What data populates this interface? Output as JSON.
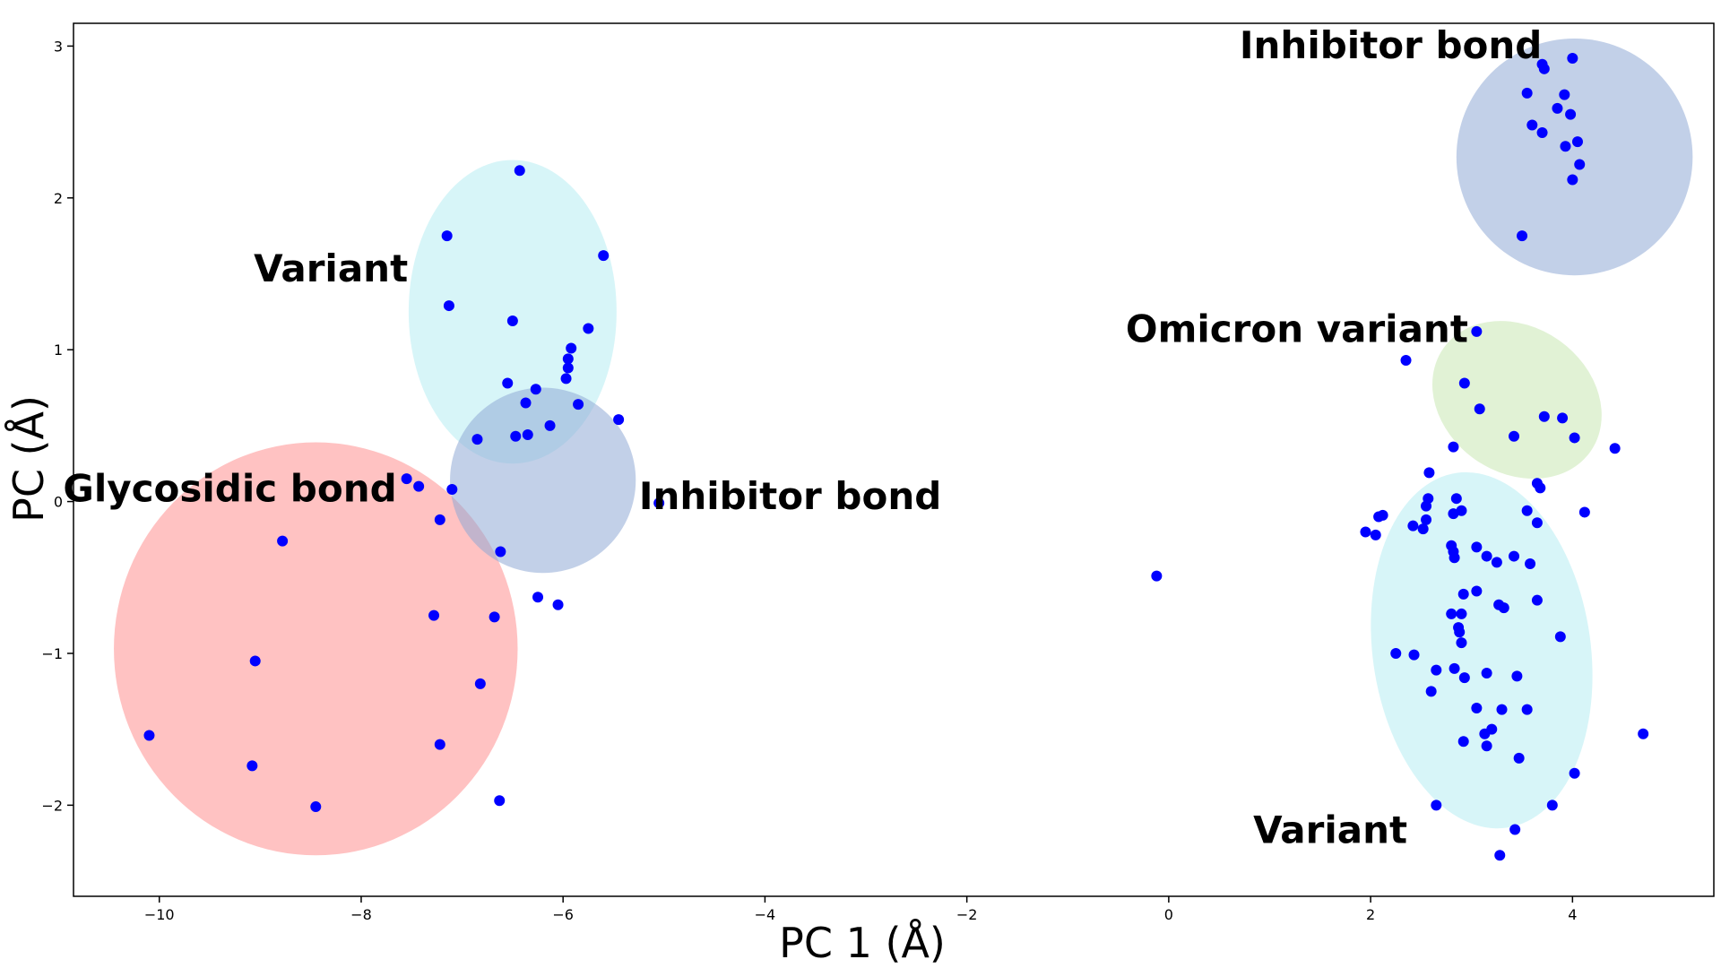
{
  "chart_data": {
    "type": "scatter",
    "title": "",
    "xlabel": "PC 1 (Å)",
    "ylabel": "PC (Å)",
    "xlim": [
      -10.85,
      5.4
    ],
    "ylim": [
      -2.6,
      3.15
    ],
    "xticks": [
      -10,
      -8,
      -6,
      -4,
      -2,
      0,
      2,
      4
    ],
    "yticks": [
      -2,
      -1,
      0,
      1,
      2,
      3
    ],
    "xtick_labels": [
      "−10",
      "−8",
      "−6",
      "−4",
      "−2",
      "0",
      "2",
      "4"
    ],
    "ytick_labels": [
      "−2",
      "−1",
      "0",
      "1",
      "2",
      "3"
    ],
    "grid": false,
    "marker_color": "#0000ff",
    "points": [
      [
        -10.1,
        -1.54
      ],
      [
        -9.05,
        -1.05
      ],
      [
        -9.08,
        -1.74
      ],
      [
        -8.78,
        -0.26
      ],
      [
        -8.45,
        -2.01
      ],
      [
        -7.55,
        0.15
      ],
      [
        -7.43,
        0.1
      ],
      [
        -7.22,
        -0.12
      ],
      [
        -7.28,
        -0.75
      ],
      [
        -6.82,
        -1.2
      ],
      [
        -7.22,
        -1.6
      ],
      [
        -6.68,
        -0.76
      ],
      [
        -7.1,
        0.08
      ],
      [
        -6.62,
        -0.33
      ],
      [
        -6.63,
        -1.97
      ],
      [
        -7.15,
        1.75
      ],
      [
        -7.13,
        1.29
      ],
      [
        -6.43,
        2.18
      ],
      [
        -5.6,
        1.62
      ],
      [
        -6.5,
        1.19
      ],
      [
        -5.75,
        1.14
      ],
      [
        -5.92,
        1.01
      ],
      [
        -5.95,
        0.94
      ],
      [
        -5.95,
        0.88
      ],
      [
        -5.97,
        0.81
      ],
      [
        -6.55,
        0.78
      ],
      [
        -6.27,
        0.74
      ],
      [
        -6.37,
        0.65
      ],
      [
        -5.85,
        0.64
      ],
      [
        -5.45,
        0.54
      ],
      [
        -6.13,
        0.5
      ],
      [
        -6.85,
        0.41
      ],
      [
        -6.47,
        0.43
      ],
      [
        -6.35,
        0.44
      ],
      [
        -6.25,
        -0.63
      ],
      [
        -6.05,
        -0.68
      ],
      [
        -5.05,
        -0.01
      ],
      [
        -0.12,
        -0.49
      ],
      [
        3.7,
        2.88
      ],
      [
        3.72,
        2.85
      ],
      [
        4.0,
        2.92
      ],
      [
        3.55,
        2.69
      ],
      [
        3.92,
        2.68
      ],
      [
        3.85,
        2.59
      ],
      [
        3.98,
        2.55
      ],
      [
        3.6,
        2.48
      ],
      [
        3.7,
        2.43
      ],
      [
        4.05,
        2.37
      ],
      [
        3.93,
        2.34
      ],
      [
        4.07,
        2.22
      ],
      [
        4.0,
        2.12
      ],
      [
        3.5,
        1.75
      ],
      [
        3.05,
        1.12
      ],
      [
        2.35,
        0.93
      ],
      [
        2.93,
        0.78
      ],
      [
        3.08,
        0.61
      ],
      [
        3.72,
        0.56
      ],
      [
        3.9,
        0.55
      ],
      [
        3.42,
        0.43
      ],
      [
        4.02,
        0.42
      ],
      [
        4.42,
        0.35
      ],
      [
        2.82,
        0.36
      ],
      [
        3.65,
        0.12
      ],
      [
        3.68,
        0.09
      ],
      [
        2.58,
        0.19
      ],
      [
        2.57,
        0.02
      ],
      [
        2.85,
        0.02
      ],
      [
        2.55,
        -0.03
      ],
      [
        2.82,
        -0.08
      ],
      [
        2.9,
        -0.06
      ],
      [
        3.55,
        -0.06
      ],
      [
        4.12,
        -0.07
      ],
      [
        2.12,
        -0.09
      ],
      [
        2.08,
        -0.1
      ],
      [
        2.55,
        -0.12
      ],
      [
        3.65,
        -0.14
      ],
      [
        2.42,
        -0.16
      ],
      [
        2.52,
        -0.18
      ],
      [
        1.95,
        -0.2
      ],
      [
        2.05,
        -0.22
      ],
      [
        2.8,
        -0.29
      ],
      [
        3.05,
        -0.3
      ],
      [
        2.82,
        -0.33
      ],
      [
        2.83,
        -0.37
      ],
      [
        3.15,
        -0.36
      ],
      [
        3.42,
        -0.36
      ],
      [
        3.25,
        -0.4
      ],
      [
        3.58,
        -0.41
      ],
      [
        3.05,
        -0.59
      ],
      [
        2.92,
        -0.61
      ],
      [
        3.65,
        -0.65
      ],
      [
        3.27,
        -0.68
      ],
      [
        3.32,
        -0.7
      ],
      [
        2.8,
        -0.74
      ],
      [
        2.9,
        -0.74
      ],
      [
        2.87,
        -0.83
      ],
      [
        2.88,
        -0.86
      ],
      [
        2.9,
        -0.93
      ],
      [
        3.88,
        -0.89
      ],
      [
        2.25,
        -1.0
      ],
      [
        2.43,
        -1.01
      ],
      [
        2.65,
        -1.11
      ],
      [
        2.83,
        -1.1
      ],
      [
        3.15,
        -1.13
      ],
      [
        3.45,
        -1.15
      ],
      [
        2.93,
        -1.16
      ],
      [
        2.6,
        -1.25
      ],
      [
        3.05,
        -1.36
      ],
      [
        3.3,
        -1.37
      ],
      [
        3.55,
        -1.37
      ],
      [
        3.2,
        -1.5
      ],
      [
        3.13,
        -1.53
      ],
      [
        4.7,
        -1.53
      ],
      [
        2.92,
        -1.58
      ],
      [
        3.15,
        -1.61
      ],
      [
        3.47,
        -1.69
      ],
      [
        4.02,
        -1.79
      ],
      [
        2.65,
        -2.0
      ],
      [
        3.8,
        -2.0
      ],
      [
        3.43,
        -2.16
      ],
      [
        3.28,
        -2.33
      ]
    ],
    "regions": [
      {
        "label": "Glycosidic bond",
        "color": "#ff8f8f"
      },
      {
        "label": "Variant",
        "color": "#b6ecf2"
      },
      {
        "label": "Inhibitor bond",
        "color": "#8fa9d6"
      },
      {
        "label": "Inhibitor bond",
        "color": "#8fa9d6"
      },
      {
        "label": "Omicron variant",
        "color": "#c8e8b2"
      },
      {
        "label": "Variant",
        "color": "#b6ecf2"
      }
    ]
  }
}
